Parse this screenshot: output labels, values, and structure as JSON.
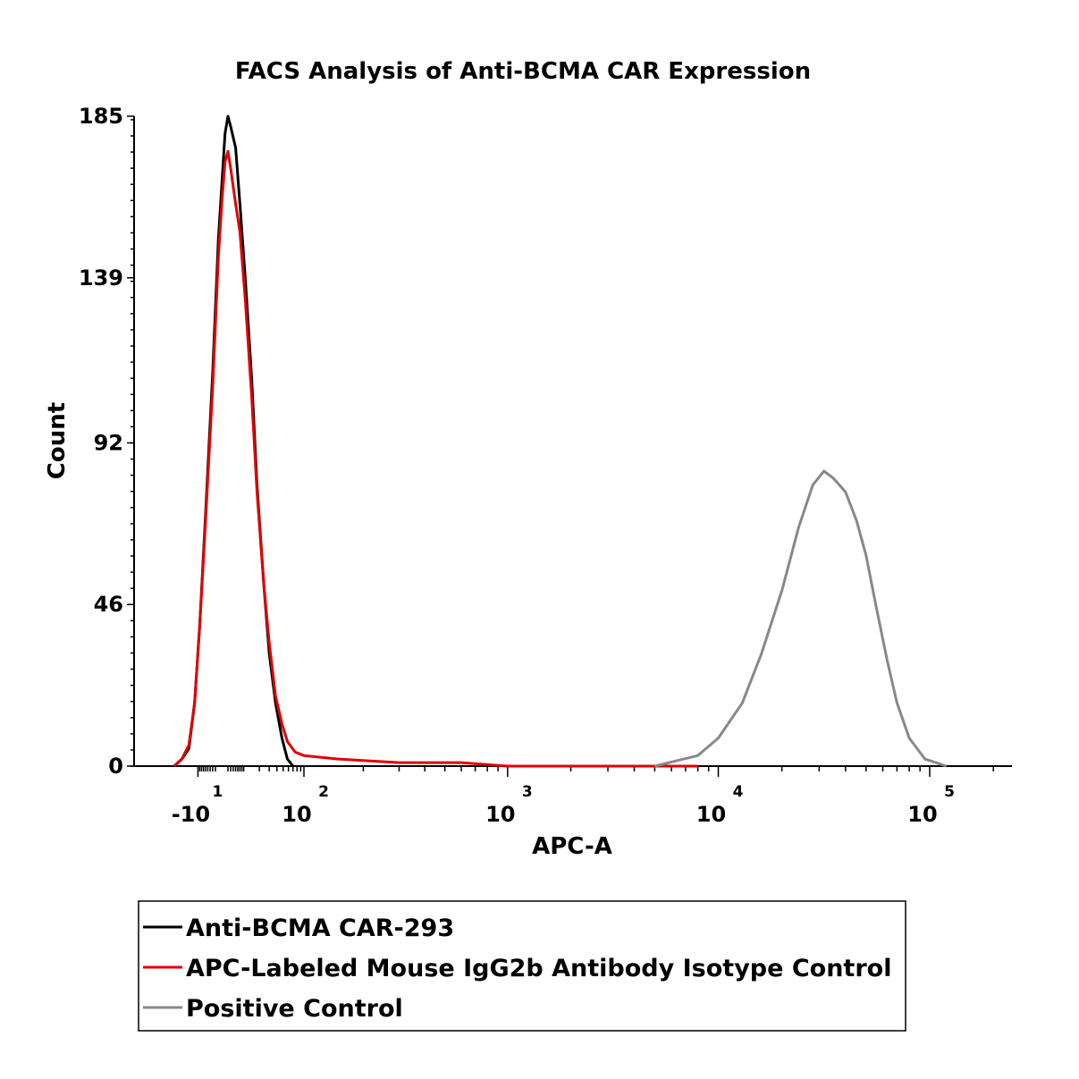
{
  "chart_data": {
    "type": "line",
    "title": "FACS Analysis of Anti-BCMA CAR Expression",
    "xlabel": "APC-A",
    "ylabel": "Count",
    "x_scale": "biexponential",
    "ylim": [
      0,
      185
    ],
    "yticks": [
      "0",
      "46",
      "92",
      "139",
      "185"
    ],
    "xticks": [
      {
        "base": "-10",
        "exp": "1"
      },
      {
        "base": "10",
        "exp": "2"
      },
      {
        "base": "10",
        "exp": "3"
      },
      {
        "base": "10",
        "exp": "4"
      },
      {
        "base": "10",
        "exp": "5"
      }
    ],
    "grid": false,
    "legend_position": "bottom",
    "series": [
      {
        "name": "Anti-BCMA CAR-293",
        "color": "#000000",
        "points": [
          [
            -30,
            0
          ],
          [
            -22,
            2
          ],
          [
            -16,
            5
          ],
          [
            -12,
            18
          ],
          [
            -9,
            40
          ],
          [
            -6,
            72
          ],
          [
            -3,
            112
          ],
          [
            -1,
            150
          ],
          [
            0,
            165
          ],
          [
            1,
            180
          ],
          [
            2,
            185
          ],
          [
            3,
            182
          ],
          [
            5,
            176
          ],
          [
            7,
            160
          ],
          [
            10,
            138
          ],
          [
            14,
            110
          ],
          [
            18,
            80
          ],
          [
            24,
            52
          ],
          [
            30,
            32
          ],
          [
            38,
            18
          ],
          [
            48,
            8
          ],
          [
            58,
            2
          ],
          [
            70,
            0
          ]
        ]
      },
      {
        "name": "APC-Labeled Mouse IgG2b Antibody Isotype Control",
        "color": "#e00000",
        "points": [
          [
            -30,
            0
          ],
          [
            -22,
            2
          ],
          [
            -16,
            6
          ],
          [
            -12,
            18
          ],
          [
            -9,
            40
          ],
          [
            -6,
            70
          ],
          [
            -3,
            108
          ],
          [
            -1,
            145
          ],
          [
            0,
            160
          ],
          [
            1,
            172
          ],
          [
            2,
            175
          ],
          [
            3,
            170
          ],
          [
            5,
            160
          ],
          [
            7,
            152
          ],
          [
            10,
            132
          ],
          [
            14,
            105
          ],
          [
            18,
            78
          ],
          [
            24,
            52
          ],
          [
            30,
            35
          ],
          [
            38,
            20
          ],
          [
            48,
            12
          ],
          [
            58,
            7
          ],
          [
            75,
            4
          ],
          [
            100,
            3
          ],
          [
            150,
            2
          ],
          [
            300,
            1
          ],
          [
            600,
            1
          ],
          [
            1000,
            0
          ],
          [
            3000,
            0
          ],
          [
            8000,
            0
          ]
        ]
      },
      {
        "name": "Positive Control",
        "color": "#888888",
        "points": [
          [
            5000,
            0
          ],
          [
            8000,
            3
          ],
          [
            10000,
            8
          ],
          [
            13000,
            18
          ],
          [
            16000,
            32
          ],
          [
            20000,
            50
          ],
          [
            24000,
            68
          ],
          [
            28000,
            80
          ],
          [
            31600,
            84
          ],
          [
            35000,
            82
          ],
          [
            40000,
            78
          ],
          [
            45000,
            70
          ],
          [
            50000,
            60
          ],
          [
            56000,
            45
          ],
          [
            63000,
            30
          ],
          [
            70000,
            18
          ],
          [
            80000,
            8
          ],
          [
            95000,
            2
          ],
          [
            120000,
            0
          ]
        ]
      }
    ]
  }
}
